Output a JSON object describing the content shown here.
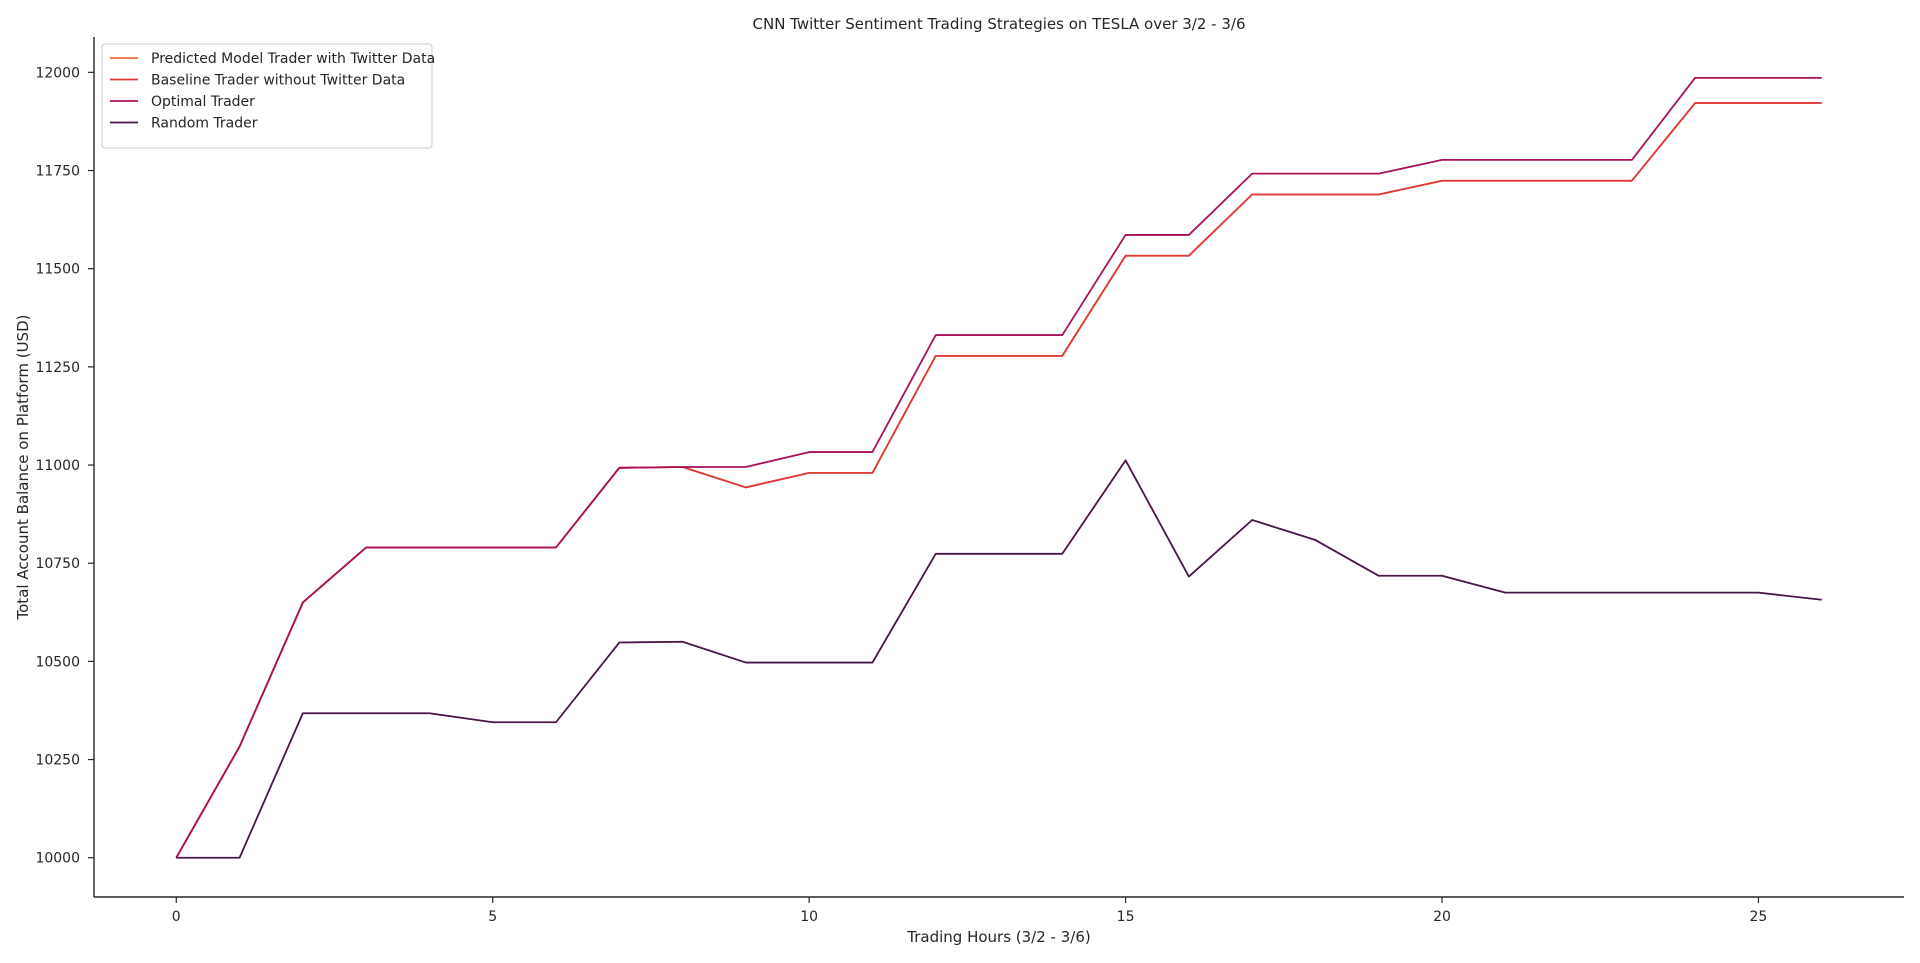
{
  "chart_data": {
    "type": "line",
    "title": "CNN Twitter Sentiment Trading Strategies on TESLA over 3/2 - 3/6",
    "xlabel": "Trading Hours (3/2 - 3/6)",
    "ylabel": "Total Account Balance on Platform (USD)",
    "xlim": [
      -1.3,
      27.3
    ],
    "ylim": [
      9900,
      12090
    ],
    "xticks": [
      0,
      5,
      10,
      15,
      20,
      25
    ],
    "yticks": [
      10000,
      10250,
      10500,
      10750,
      11000,
      11250,
      11500,
      11750,
      12000
    ],
    "grid": false,
    "legend_position": "top-left",
    "x": [
      0,
      1,
      2,
      3,
      4,
      5,
      6,
      7,
      8,
      9,
      10,
      11,
      12,
      13,
      14,
      15,
      16,
      17,
      18,
      19,
      20,
      21,
      22,
      23,
      24,
      25,
      26
    ],
    "series": [
      {
        "name": "Predicted Model Trader with Twitter Data",
        "color": "#f26c3e",
        "values": [
          10000,
          10283,
          10650,
          10790,
          10790,
          10790,
          10790,
          10993,
          10995,
          10943,
          10980,
          10980,
          11278,
          11278,
          11278,
          11533,
          11533,
          11689,
          11689,
          11689,
          11724,
          11724,
          11724,
          11724,
          11922,
          11922,
          11922
        ]
      },
      {
        "name": "Baseline Trader without Twitter Data",
        "color": "#e0393a",
        "values": [
          10000,
          10283,
          10650,
          10790,
          10790,
          10790,
          10790,
          10993,
          10995,
          10943,
          10980,
          10980,
          11278,
          11278,
          11278,
          11533,
          11533,
          11689,
          11689,
          11689,
          11724,
          11724,
          11724,
          11724,
          11922,
          11922,
          11922
        ]
      },
      {
        "name": "Optimal Trader",
        "color": "#a8125a",
        "values": [
          10000,
          10283,
          10650,
          10790,
          10790,
          10790,
          10790,
          10993,
          10995,
          10995,
          11033,
          11033,
          11331,
          11331,
          11331,
          11586,
          11586,
          11742,
          11742,
          11742,
          11777,
          11777,
          11777,
          11777,
          11986,
          11986,
          11986
        ]
      },
      {
        "name": "Random Trader",
        "color": "#4a1547",
        "values": [
          10000,
          10000,
          10368,
          10368,
          10368,
          10345,
          10345,
          10548,
          10550,
          10497,
          10497,
          10497,
          10774,
          10774,
          10774,
          11012,
          10716,
          10860,
          10809,
          10718,
          10718,
          10675,
          10675,
          10675,
          10675,
          10675,
          10657
        ]
      }
    ]
  }
}
